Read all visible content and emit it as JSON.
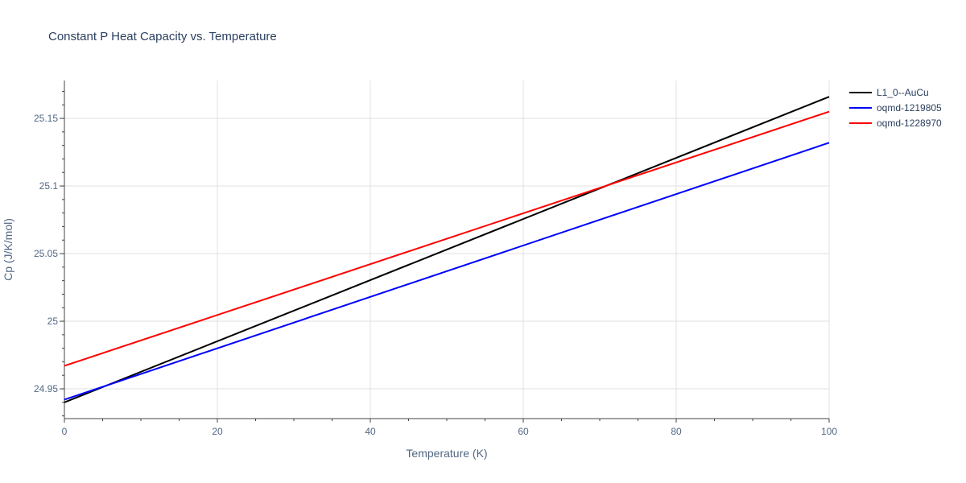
{
  "chart_data": {
    "type": "line",
    "title": "Constant P Heat Capacity vs. Temperature",
    "xlabel": "Temperature (K)",
    "ylabel": "Cp (J/K/mol)",
    "xlim": [
      0,
      100
    ],
    "ylim": [
      24.928,
      25.178
    ],
    "x_ticks": [
      0,
      20,
      40,
      60,
      80,
      100
    ],
    "x_tick_labels": [
      "0",
      "20",
      "40",
      "60",
      "80",
      "100"
    ],
    "y_ticks": [
      24.95,
      25,
      25.05,
      25.1,
      25.15
    ],
    "y_tick_labels": [
      "24.95",
      "25",
      "25.05",
      "25.1",
      "25.15"
    ],
    "grid": true,
    "legend_position": "top-right",
    "series": [
      {
        "name": "L1_0--AuCu",
        "color": "#000000",
        "x": [
          0,
          100
        ],
        "y": [
          24.94,
          25.166
        ]
      },
      {
        "name": "oqmd-1219805",
        "color": "#0000ff",
        "x": [
          0,
          100
        ],
        "y": [
          24.942,
          25.132
        ]
      },
      {
        "name": "oqmd-1228970",
        "color": "#ff0000",
        "x": [
          0,
          100
        ],
        "y": [
          24.967,
          25.155
        ]
      }
    ]
  }
}
